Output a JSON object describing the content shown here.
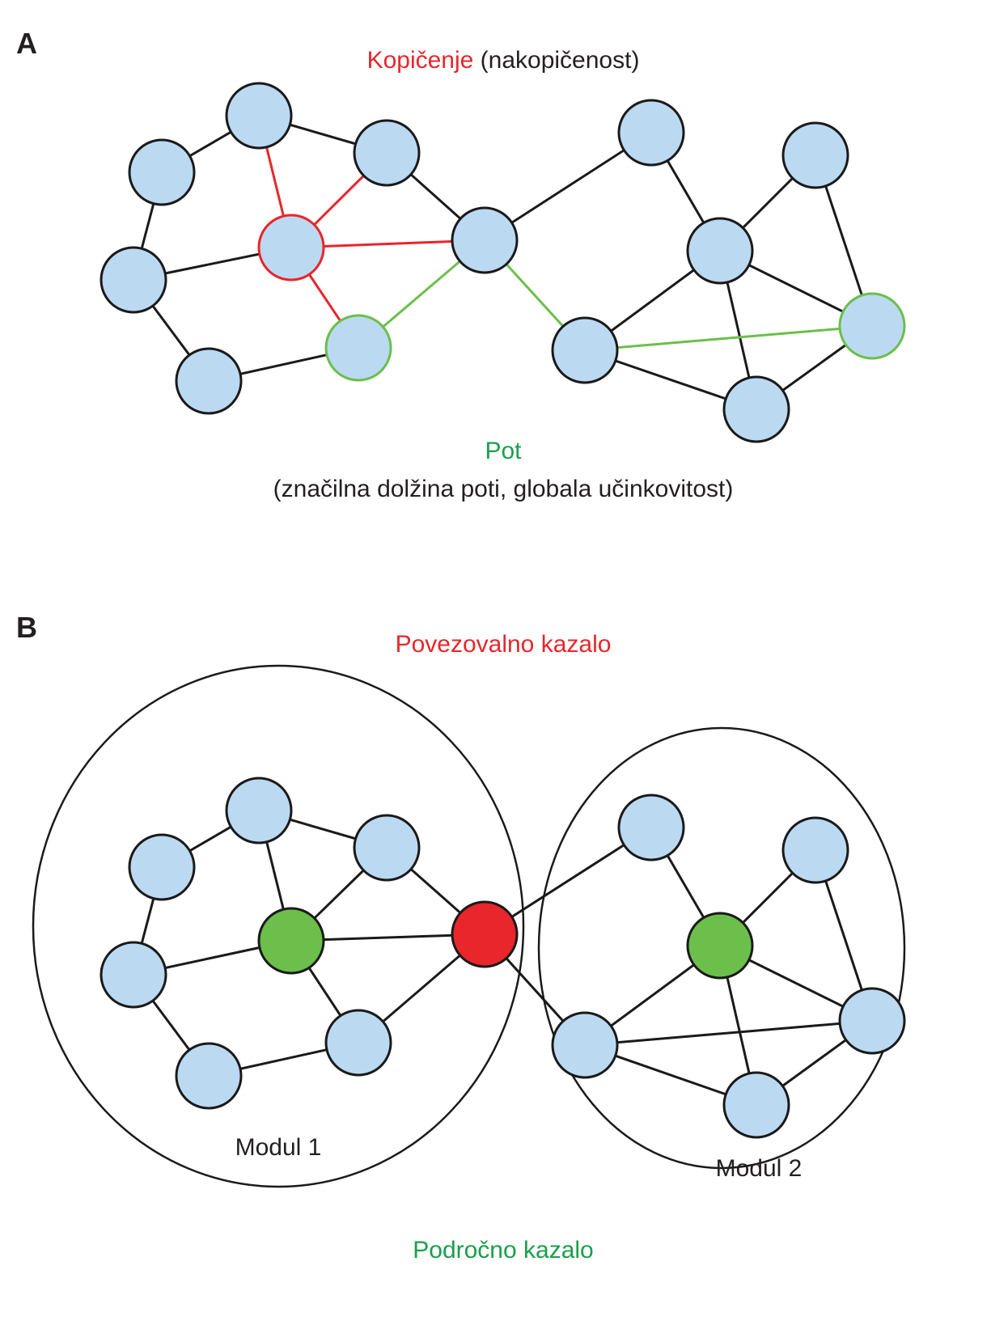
{
  "colors": {
    "node_fill": "#bcd9f2",
    "node_stroke": "#1a1a1a",
    "red": "#e8262b",
    "green": "#6bbf4a",
    "label_red": "#e8262b",
    "label_green": "#19a04b"
  },
  "panel_a": {
    "label": "A",
    "title_highlight": "Kopičenje",
    "title_rest": " (nakopičenost)",
    "path_label": "Pot",
    "path_sublabel": "(značilna dolžina poti, globala učinkovitost)"
  },
  "panel_b": {
    "label": "B",
    "hub_title": "Povezovalno kazalo",
    "module_1": "Modul 1",
    "module_2": "Modul 2",
    "local_title": "Področno kazalo"
  }
}
